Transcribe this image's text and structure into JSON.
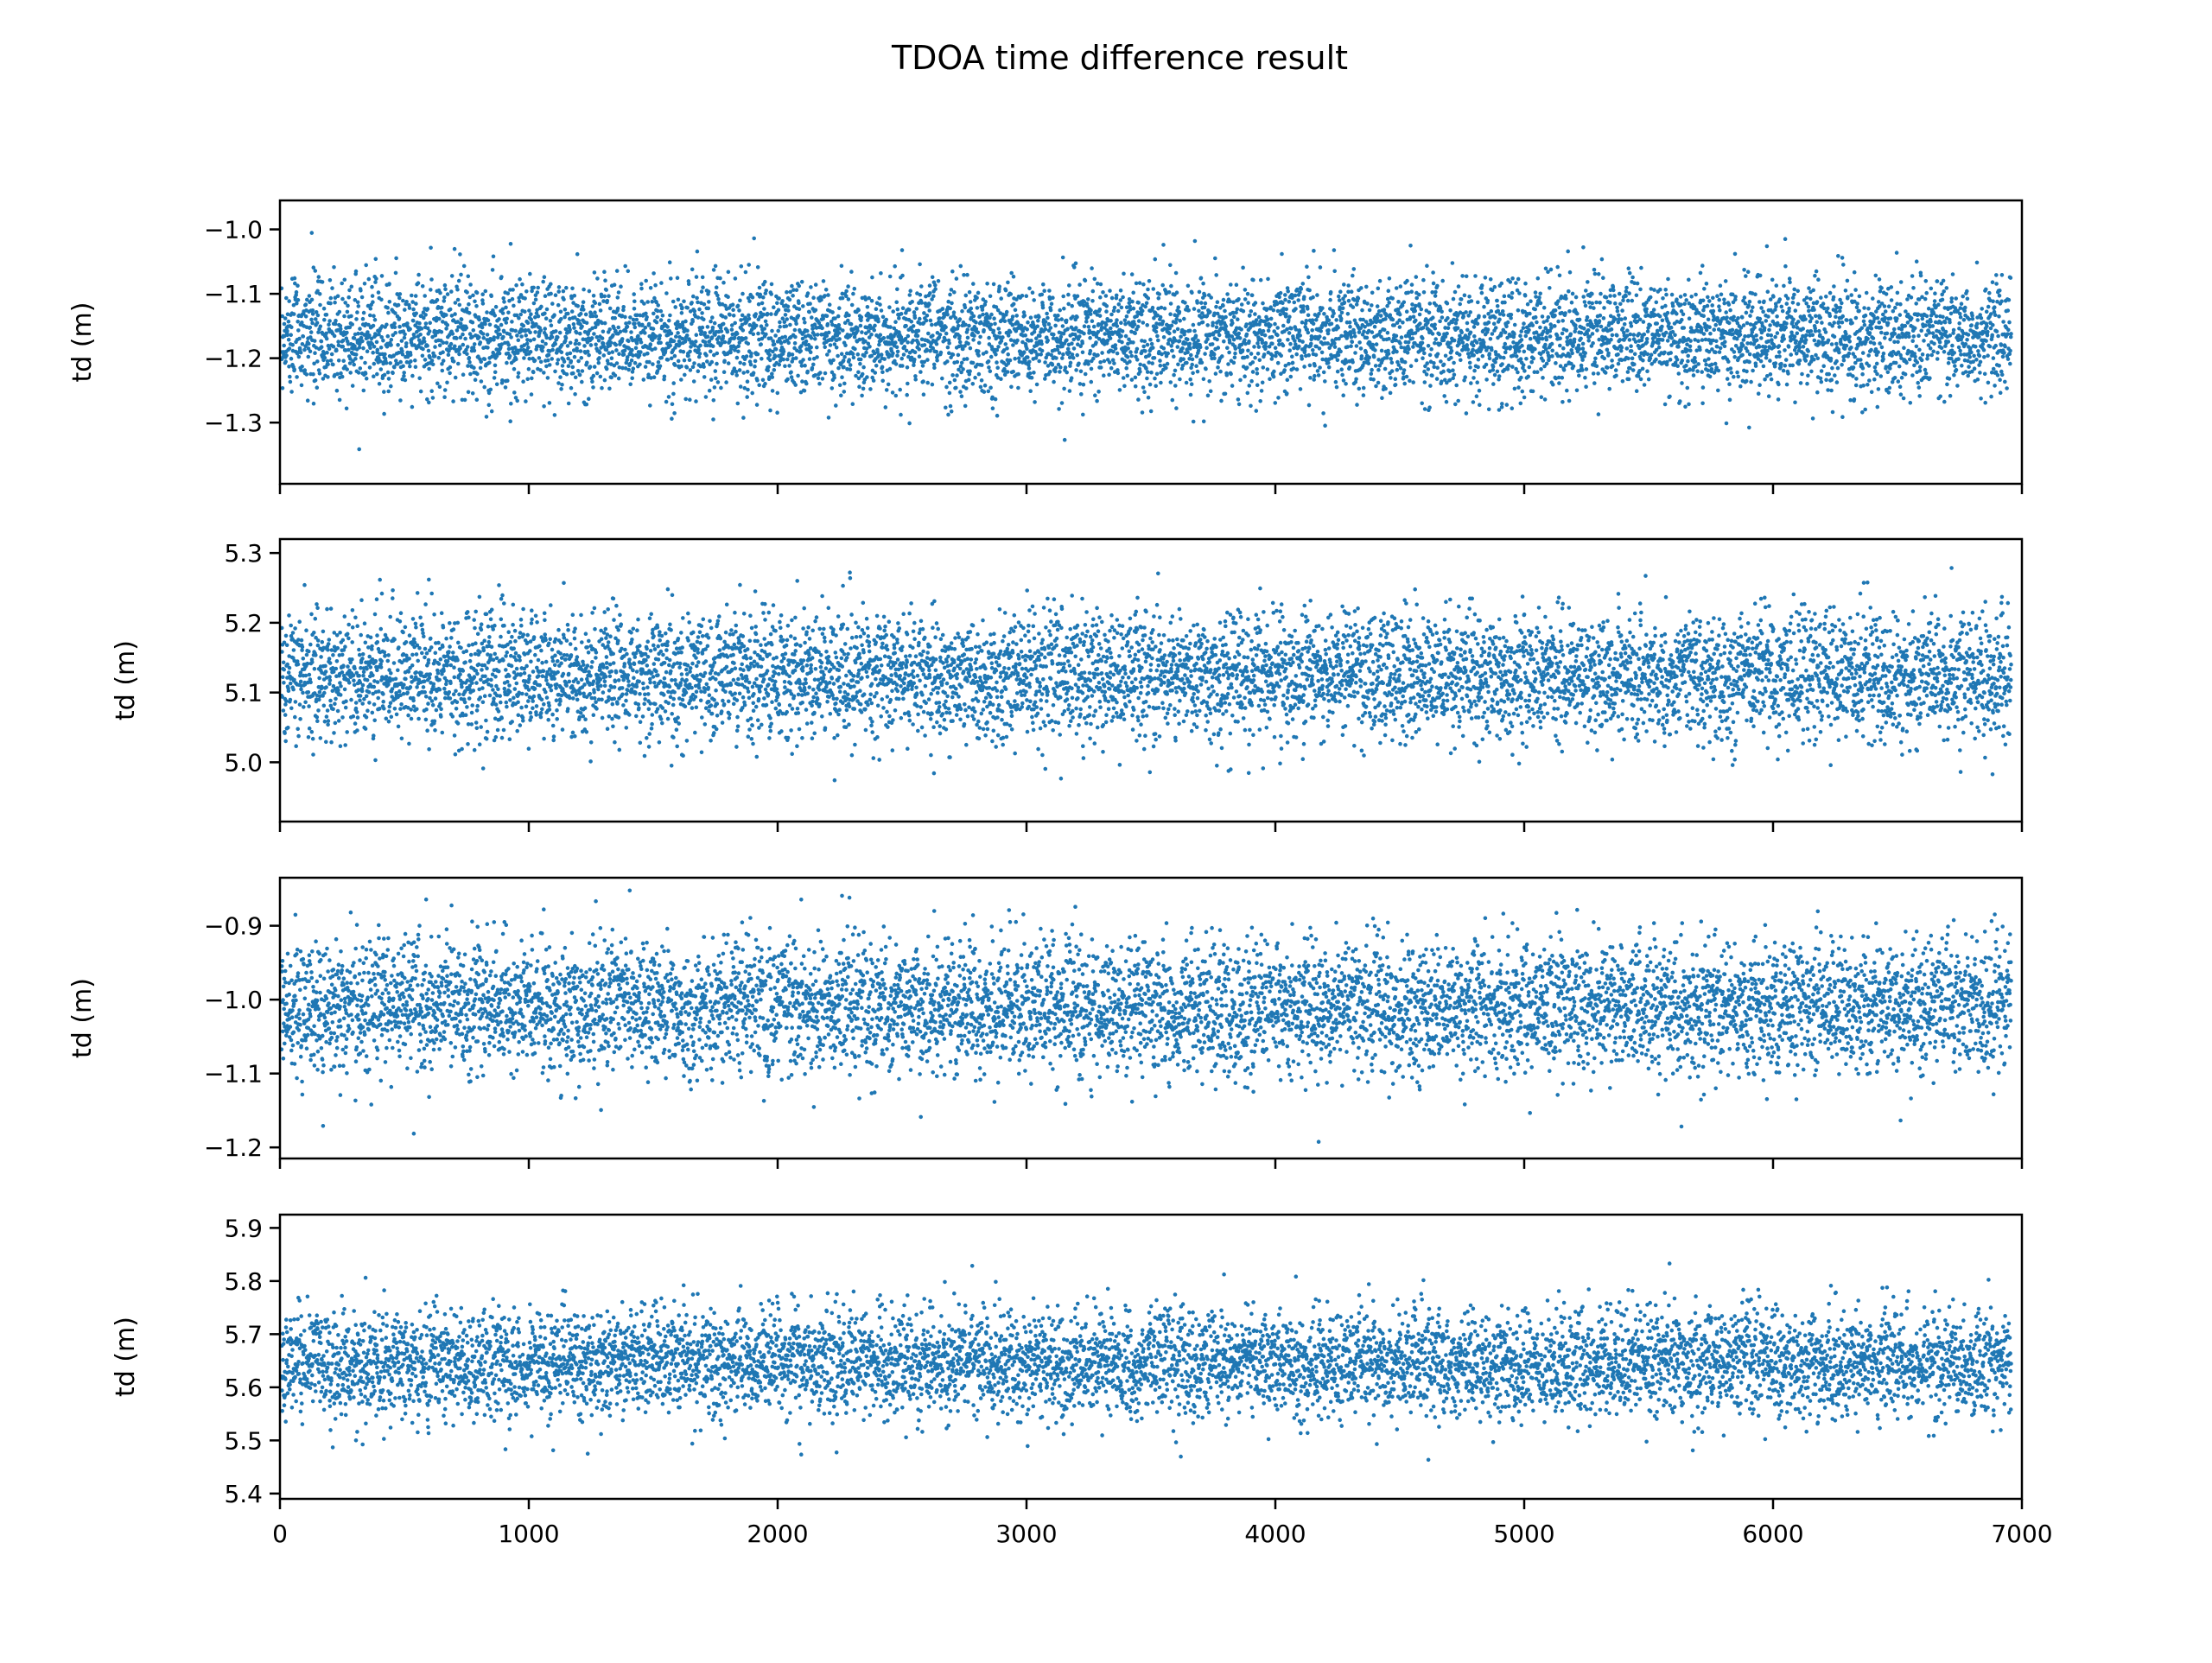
{
  "chart_data": {
    "type": "scatter",
    "title": "TDOA time difference result",
    "marker_color": "#1f77b4",
    "point_count_per_panel": 7000,
    "shared_x": true,
    "x": {
      "lim": [
        0,
        7000
      ],
      "ticks": [
        0,
        1000,
        2000,
        3000,
        4000,
        5000,
        6000,
        7000
      ],
      "tick_labels": [
        "0",
        "1000",
        "2000",
        "3000",
        "4000",
        "5000",
        "6000",
        "7000"
      ]
    },
    "panels": [
      {
        "ylabel": "td (m)",
        "ylim": [
          -1.395,
          -0.955
        ],
        "yticks": [
          -1.0,
          -1.1,
          -1.2,
          -1.3
        ],
        "ytick_labels": [
          "−1.0",
          "−1.1",
          "−1.2",
          "−1.3"
        ],
        "mean": -1.165,
        "std": 0.045,
        "y_min": -1.375,
        "y_max": -0.975
      },
      {
        "ylabel": "td (m)",
        "ylim": [
          4.915,
          5.32
        ],
        "yticks": [
          5.3,
          5.2,
          5.1,
          5.0
        ],
        "ytick_labels": [
          "5.3",
          "5.2",
          "5.1",
          "5.0"
        ],
        "mean": 5.125,
        "std": 0.045,
        "y_min": 4.93,
        "y_max": 5.3
      },
      {
        "ylabel": "td (m)",
        "ylim": [
          -1.215,
          -0.835
        ],
        "yticks": [
          -0.9,
          -1.0,
          -1.1,
          -1.2
        ],
        "ytick_labels": [
          "−0.9",
          "−1.0",
          "−1.1",
          "−1.2"
        ],
        "mean": -1.01,
        "std": 0.045,
        "y_min": -1.195,
        "y_max": -0.85
      },
      {
        "ylabel": "td (m)",
        "ylim": [
          5.39,
          5.925
        ],
        "yticks": [
          5.9,
          5.8,
          5.7,
          5.6,
          5.5,
          5.4
        ],
        "ytick_labels": [
          "5.9",
          "5.8",
          "5.7",
          "5.6",
          "5.5",
          "5.4"
        ],
        "mean": 5.645,
        "std": 0.05,
        "y_min": 5.42,
        "y_max": 5.9
      }
    ]
  }
}
